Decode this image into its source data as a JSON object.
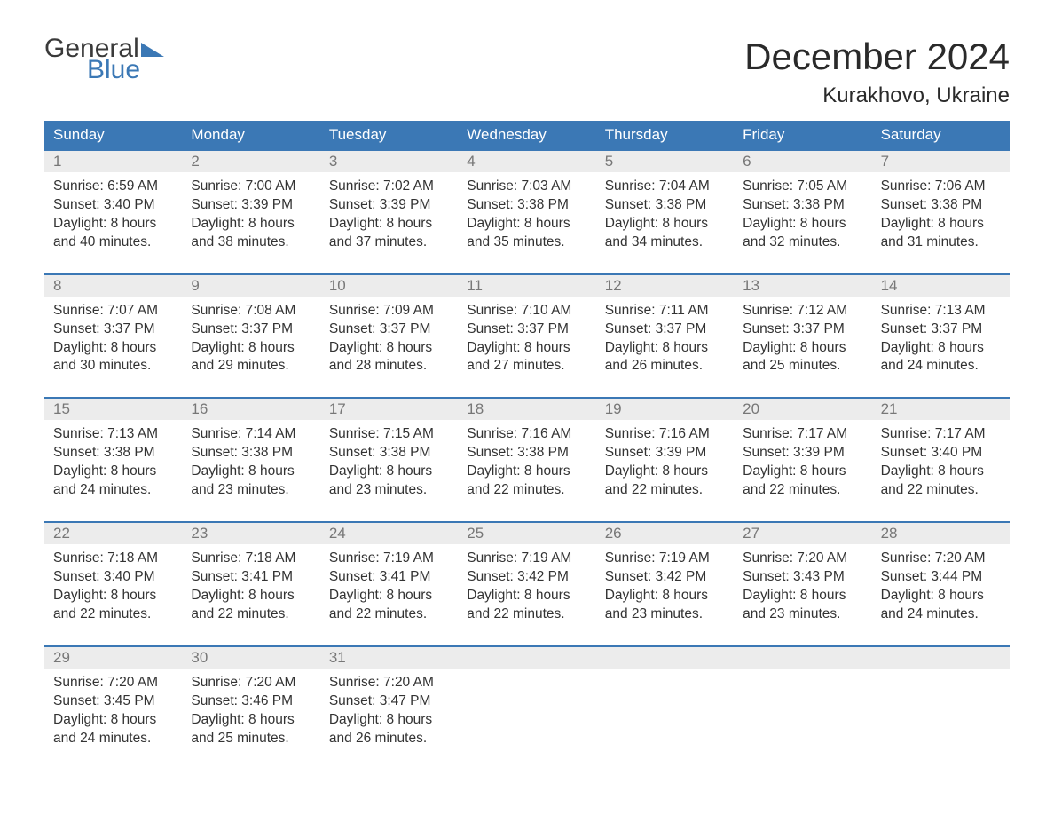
{
  "logo": {
    "text_general": "General",
    "text_blue": "Blue",
    "flag_color": "#3b78b5"
  },
  "title": {
    "month": "December 2024",
    "location": "Kurakhovo, Ukraine"
  },
  "colors": {
    "header_bg": "#3b78b5",
    "header_text": "#ffffff",
    "daynum_bg": "#ececec",
    "daynum_text": "#777777",
    "body_text": "#333333",
    "week_border": "#3b78b5",
    "page_bg": "#ffffff"
  },
  "day_names": [
    "Sunday",
    "Monday",
    "Tuesday",
    "Wednesday",
    "Thursday",
    "Friday",
    "Saturday"
  ],
  "weeks": [
    [
      {
        "num": "1",
        "sunrise": "Sunrise: 6:59 AM",
        "sunset": "Sunset: 3:40 PM",
        "dl1": "Daylight: 8 hours",
        "dl2": "and 40 minutes."
      },
      {
        "num": "2",
        "sunrise": "Sunrise: 7:00 AM",
        "sunset": "Sunset: 3:39 PM",
        "dl1": "Daylight: 8 hours",
        "dl2": "and 38 minutes."
      },
      {
        "num": "3",
        "sunrise": "Sunrise: 7:02 AM",
        "sunset": "Sunset: 3:39 PM",
        "dl1": "Daylight: 8 hours",
        "dl2": "and 37 minutes."
      },
      {
        "num": "4",
        "sunrise": "Sunrise: 7:03 AM",
        "sunset": "Sunset: 3:38 PM",
        "dl1": "Daylight: 8 hours",
        "dl2": "and 35 minutes."
      },
      {
        "num": "5",
        "sunrise": "Sunrise: 7:04 AM",
        "sunset": "Sunset: 3:38 PM",
        "dl1": "Daylight: 8 hours",
        "dl2": "and 34 minutes."
      },
      {
        "num": "6",
        "sunrise": "Sunrise: 7:05 AM",
        "sunset": "Sunset: 3:38 PM",
        "dl1": "Daylight: 8 hours",
        "dl2": "and 32 minutes."
      },
      {
        "num": "7",
        "sunrise": "Sunrise: 7:06 AM",
        "sunset": "Sunset: 3:38 PM",
        "dl1": "Daylight: 8 hours",
        "dl2": "and 31 minutes."
      }
    ],
    [
      {
        "num": "8",
        "sunrise": "Sunrise: 7:07 AM",
        "sunset": "Sunset: 3:37 PM",
        "dl1": "Daylight: 8 hours",
        "dl2": "and 30 minutes."
      },
      {
        "num": "9",
        "sunrise": "Sunrise: 7:08 AM",
        "sunset": "Sunset: 3:37 PM",
        "dl1": "Daylight: 8 hours",
        "dl2": "and 29 minutes."
      },
      {
        "num": "10",
        "sunrise": "Sunrise: 7:09 AM",
        "sunset": "Sunset: 3:37 PM",
        "dl1": "Daylight: 8 hours",
        "dl2": "and 28 minutes."
      },
      {
        "num": "11",
        "sunrise": "Sunrise: 7:10 AM",
        "sunset": "Sunset: 3:37 PM",
        "dl1": "Daylight: 8 hours",
        "dl2": "and 27 minutes."
      },
      {
        "num": "12",
        "sunrise": "Sunrise: 7:11 AM",
        "sunset": "Sunset: 3:37 PM",
        "dl1": "Daylight: 8 hours",
        "dl2": "and 26 minutes."
      },
      {
        "num": "13",
        "sunrise": "Sunrise: 7:12 AM",
        "sunset": "Sunset: 3:37 PM",
        "dl1": "Daylight: 8 hours",
        "dl2": "and 25 minutes."
      },
      {
        "num": "14",
        "sunrise": "Sunrise: 7:13 AM",
        "sunset": "Sunset: 3:37 PM",
        "dl1": "Daylight: 8 hours",
        "dl2": "and 24 minutes."
      }
    ],
    [
      {
        "num": "15",
        "sunrise": "Sunrise: 7:13 AM",
        "sunset": "Sunset: 3:38 PM",
        "dl1": "Daylight: 8 hours",
        "dl2": "and 24 minutes."
      },
      {
        "num": "16",
        "sunrise": "Sunrise: 7:14 AM",
        "sunset": "Sunset: 3:38 PM",
        "dl1": "Daylight: 8 hours",
        "dl2": "and 23 minutes."
      },
      {
        "num": "17",
        "sunrise": "Sunrise: 7:15 AM",
        "sunset": "Sunset: 3:38 PM",
        "dl1": "Daylight: 8 hours",
        "dl2": "and 23 minutes."
      },
      {
        "num": "18",
        "sunrise": "Sunrise: 7:16 AM",
        "sunset": "Sunset: 3:38 PM",
        "dl1": "Daylight: 8 hours",
        "dl2": "and 22 minutes."
      },
      {
        "num": "19",
        "sunrise": "Sunrise: 7:16 AM",
        "sunset": "Sunset: 3:39 PM",
        "dl1": "Daylight: 8 hours",
        "dl2": "and 22 minutes."
      },
      {
        "num": "20",
        "sunrise": "Sunrise: 7:17 AM",
        "sunset": "Sunset: 3:39 PM",
        "dl1": "Daylight: 8 hours",
        "dl2": "and 22 minutes."
      },
      {
        "num": "21",
        "sunrise": "Sunrise: 7:17 AM",
        "sunset": "Sunset: 3:40 PM",
        "dl1": "Daylight: 8 hours",
        "dl2": "and 22 minutes."
      }
    ],
    [
      {
        "num": "22",
        "sunrise": "Sunrise: 7:18 AM",
        "sunset": "Sunset: 3:40 PM",
        "dl1": "Daylight: 8 hours",
        "dl2": "and 22 minutes."
      },
      {
        "num": "23",
        "sunrise": "Sunrise: 7:18 AM",
        "sunset": "Sunset: 3:41 PM",
        "dl1": "Daylight: 8 hours",
        "dl2": "and 22 minutes."
      },
      {
        "num": "24",
        "sunrise": "Sunrise: 7:19 AM",
        "sunset": "Sunset: 3:41 PM",
        "dl1": "Daylight: 8 hours",
        "dl2": "and 22 minutes."
      },
      {
        "num": "25",
        "sunrise": "Sunrise: 7:19 AM",
        "sunset": "Sunset: 3:42 PM",
        "dl1": "Daylight: 8 hours",
        "dl2": "and 22 minutes."
      },
      {
        "num": "26",
        "sunrise": "Sunrise: 7:19 AM",
        "sunset": "Sunset: 3:42 PM",
        "dl1": "Daylight: 8 hours",
        "dl2": "and 23 minutes."
      },
      {
        "num": "27",
        "sunrise": "Sunrise: 7:20 AM",
        "sunset": "Sunset: 3:43 PM",
        "dl1": "Daylight: 8 hours",
        "dl2": "and 23 minutes."
      },
      {
        "num": "28",
        "sunrise": "Sunrise: 7:20 AM",
        "sunset": "Sunset: 3:44 PM",
        "dl1": "Daylight: 8 hours",
        "dl2": "and 24 minutes."
      }
    ],
    [
      {
        "num": "29",
        "sunrise": "Sunrise: 7:20 AM",
        "sunset": "Sunset: 3:45 PM",
        "dl1": "Daylight: 8 hours",
        "dl2": "and 24 minutes."
      },
      {
        "num": "30",
        "sunrise": "Sunrise: 7:20 AM",
        "sunset": "Sunset: 3:46 PM",
        "dl1": "Daylight: 8 hours",
        "dl2": "and 25 minutes."
      },
      {
        "num": "31",
        "sunrise": "Sunrise: 7:20 AM",
        "sunset": "Sunset: 3:47 PM",
        "dl1": "Daylight: 8 hours",
        "dl2": "and 26 minutes."
      },
      {
        "empty": true
      },
      {
        "empty": true
      },
      {
        "empty": true
      },
      {
        "empty": true
      }
    ]
  ]
}
